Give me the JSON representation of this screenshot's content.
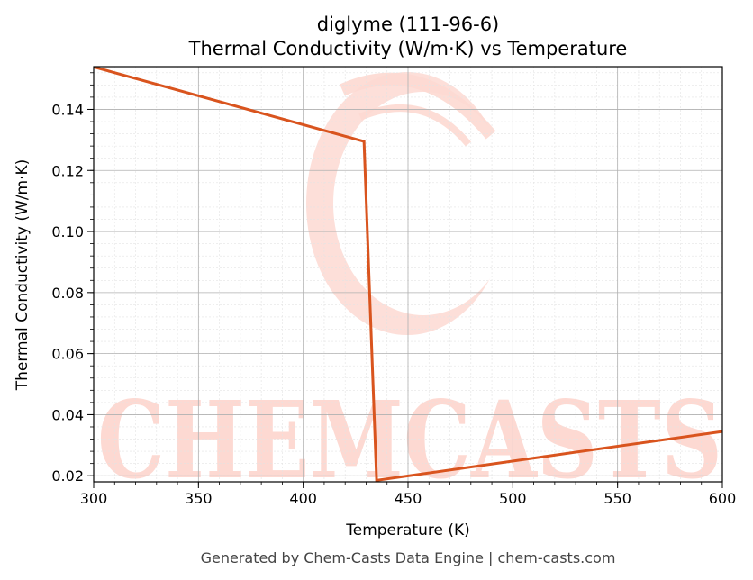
{
  "chart_data": {
    "type": "line",
    "title": "diglyme (111-96-6)",
    "subtitle": "Thermal Conductivity (W/m·K) vs Temperature",
    "xlabel": "Temperature (K)",
    "ylabel": "Thermal Conductivity (W/m·K)",
    "xlim": [
      300,
      600
    ],
    "ylim": [
      0.018,
      0.154
    ],
    "xticks": [
      300,
      350,
      400,
      450,
      500,
      550,
      600
    ],
    "yticks": [
      0.02,
      0.04,
      0.06,
      0.08,
      0.1,
      0.12,
      0.14
    ],
    "grid": true,
    "legend": "none",
    "line_color": "#d9541e",
    "series": [
      {
        "points": [
          {
            "x": 300,
            "y": 0.1539
          },
          {
            "x": 429,
            "y": 0.1295
          },
          {
            "x": 435,
            "y": 0.0185
          },
          {
            "x": 600,
            "y": 0.0345
          }
        ]
      }
    ]
  },
  "watermark": {
    "text": "CHEMCASTS",
    "color": "#fdd9d2"
  },
  "footer": "Generated by Chem-Casts Data Engine | chem-casts.com"
}
